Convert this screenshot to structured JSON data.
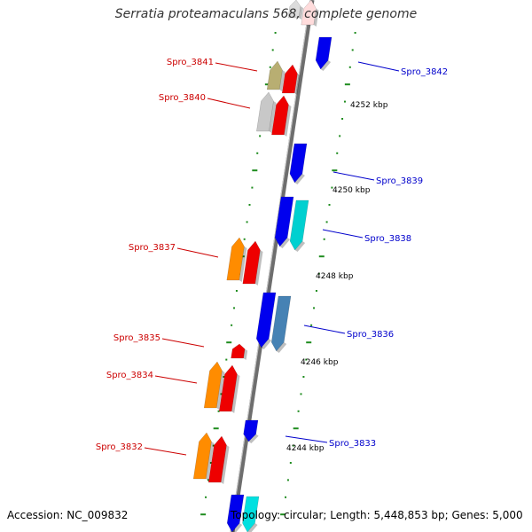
{
  "title": "Serratia proteamaculans 568, complete genome",
  "footer": {
    "accession": "Accession: NC_009832",
    "summary": "Topology: circular; Length: 5,448,853 bp; Genes: 5,000"
  },
  "colors": {
    "backbone": "#6e6e6e",
    "tick": "#1e8c1e",
    "label_left": "#cc0000",
    "label_right": "#0000cc",
    "label_scale": "#000000"
  },
  "scale_labels": [
    "4252 kbp",
    "4250 kbp",
    "4248 kbp",
    "4246 kbp",
    "4244 kbp"
  ],
  "left_labels": [
    "Spro_3841",
    "Spro_3840",
    "Spro_3837",
    "Spro_3835",
    "Spro_3834",
    "Spro_3832"
  ],
  "right_labels": [
    "Spro_3842",
    "Spro_3839",
    "Spro_3838",
    "Spro_3836",
    "Spro_3833"
  ],
  "genes": [
    {
      "name": "top-fade",
      "color": "#ffdcdc",
      "strand": "forward"
    },
    {
      "name": "top-fade-2",
      "color": "#dcdcdc",
      "strand": "forward"
    },
    {
      "name": "Spro_3842",
      "color": "#0000ee",
      "strand": "reverse"
    },
    {
      "name": "Spro_3841-a",
      "color": "#b8ae72",
      "strand": "forward"
    },
    {
      "name": "Spro_3841-b",
      "color": "#ee0000",
      "strand": "forward"
    },
    {
      "name": "Spro_3840-a",
      "color": "#c8c8c8",
      "strand": "forward"
    },
    {
      "name": "Spro_3840-b",
      "color": "#ee0000",
      "strand": "forward"
    },
    {
      "name": "Spro_3839",
      "color": "#0000ee",
      "strand": "reverse"
    },
    {
      "name": "Spro_3838-a",
      "color": "#0000ee",
      "strand": "reverse"
    },
    {
      "name": "Spro_3838-b",
      "color": "#00d0d0",
      "strand": "reverse"
    },
    {
      "name": "Spro_3837-a",
      "color": "#ff8c00",
      "strand": "forward"
    },
    {
      "name": "Spro_3837-b",
      "color": "#ee0000",
      "strand": "forward"
    },
    {
      "name": "Spro_3836-a",
      "color": "#0000ee",
      "strand": "reverse"
    },
    {
      "name": "Spro_3836-b",
      "color": "#4682b4",
      "strand": "reverse"
    },
    {
      "name": "Spro_3835",
      "color": "#ee0000",
      "strand": "forward"
    },
    {
      "name": "Spro_3834-a",
      "color": "#ff8c00",
      "strand": "forward"
    },
    {
      "name": "Spro_3834-b",
      "color": "#ee0000",
      "strand": "forward"
    },
    {
      "name": "Spro_3833",
      "color": "#0000ee",
      "strand": "reverse"
    },
    {
      "name": "Spro_3832-a",
      "color": "#ff8c00",
      "strand": "forward"
    },
    {
      "name": "Spro_3832-b",
      "color": "#ee0000",
      "strand": "forward"
    },
    {
      "name": "bottom-a",
      "color": "#0000ee",
      "strand": "reverse"
    },
    {
      "name": "bottom-b",
      "color": "#00e0e0",
      "strand": "reverse"
    }
  ]
}
